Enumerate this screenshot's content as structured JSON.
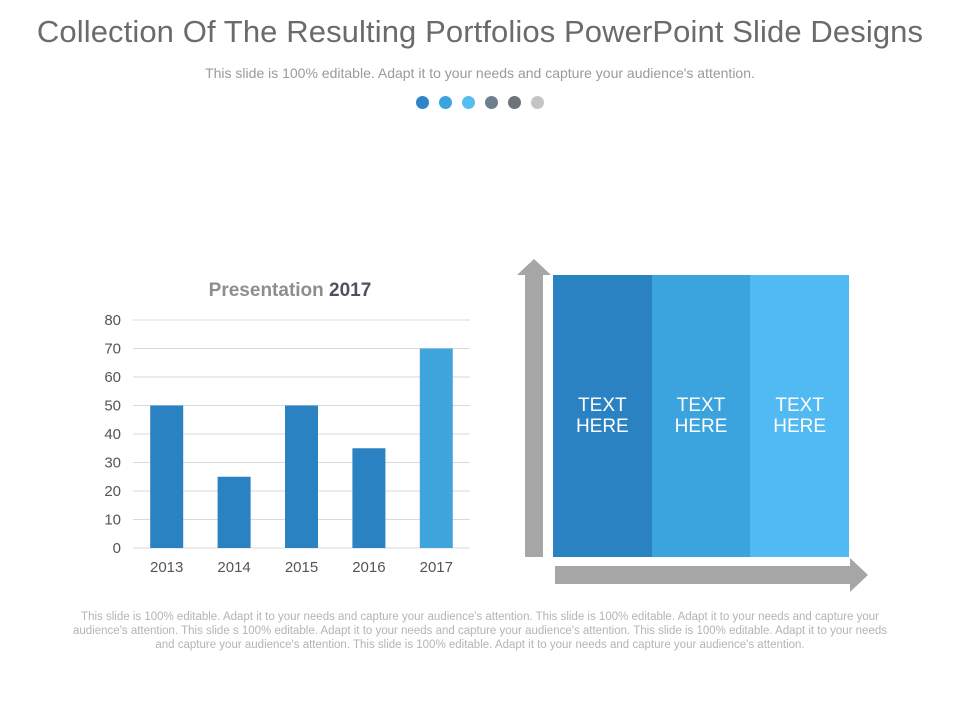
{
  "header": {
    "title": "Collection Of The Resulting Portfolios PowerPoint Slide Designs",
    "subtitle": "This slide is 100% editable. Adapt it to your needs and capture your audience's attention."
  },
  "dots": {
    "colors": [
      "#2e86c8",
      "#3ba3dd",
      "#55bdf0",
      "#6f7f8f",
      "#6e7378",
      "#c4c4c4"
    ]
  },
  "chart_data": {
    "type": "bar",
    "title": "Presentation",
    "title_year": "2017",
    "categories": [
      "2013",
      "2014",
      "2015",
      "2016",
      "2017"
    ],
    "values": [
      50,
      25,
      50,
      35,
      70
    ],
    "colors": [
      "#2a82c2",
      "#2a82c2",
      "#2a82c2",
      "#2a82c2",
      "#3ea6dd"
    ],
    "yticks": [
      "0",
      "10",
      "20",
      "30",
      "40",
      "50",
      "60",
      "70",
      "80"
    ],
    "ylim": [
      0,
      80
    ],
    "xlabel": "",
    "ylabel": "",
    "grid": true
  },
  "panel": {
    "columns": [
      {
        "label": "TEXT\nHERE",
        "color": "#2a82c2"
      },
      {
        "label": "TEXT\nHERE",
        "color": "#3ba3dd"
      },
      {
        "label": "TEXT\nHERE",
        "color": "#52baf2"
      }
    ],
    "arrow_color": "#a6a6a6"
  },
  "footer": {
    "text": "This slide is 100% editable. Adapt it to your needs and capture your audience's attention. This slide is 100% editable. Adapt it to your needs and capture your audience's attention. This slide s 100% editable. Adapt it to your needs and capture your audience's attention. This slide is 100% editable. Adapt it to your needs and capture your audience's attention. This slide is 100% editable. Adapt it to your needs and capture your audience's attention."
  }
}
